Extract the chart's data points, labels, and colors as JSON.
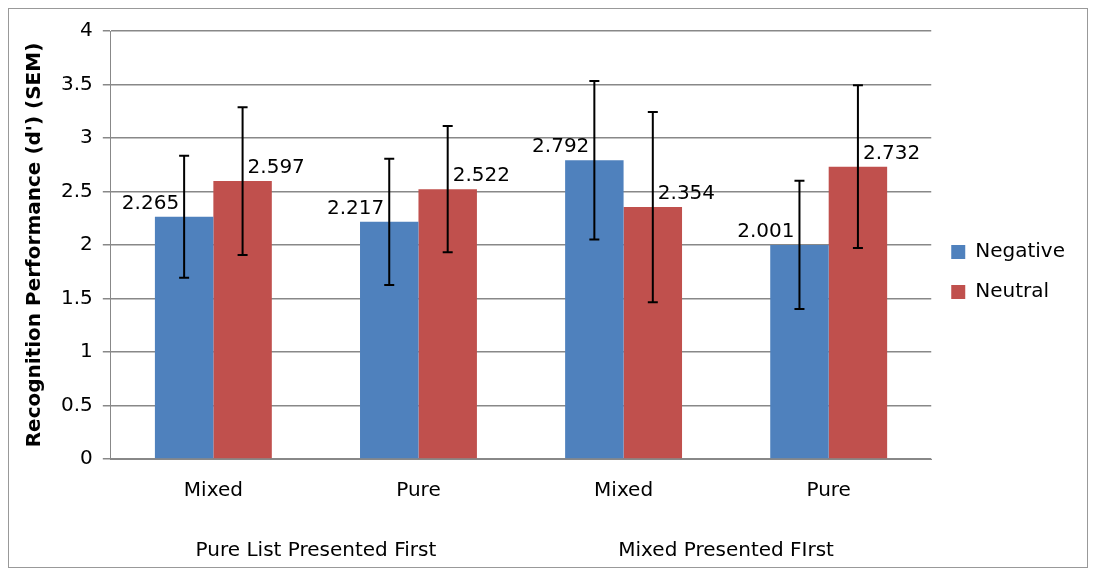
{
  "chart_data": {
    "type": "bar",
    "ylabel": "Recognition Performance (d') (SEM)",
    "categories": [
      "Mixed",
      "Pure",
      "Mixed",
      "Pure"
    ],
    "series": [
      {
        "name": "Negative",
        "color": "#4f81bd",
        "values": [
          2.265,
          2.217,
          2.792,
          2.001
        ],
        "value_labels": [
          "2.265",
          "2.217",
          "2.792",
          "2.001"
        ],
        "errors": [
          0.57,
          0.59,
          0.74,
          0.6
        ]
      },
      {
        "name": "Neutral",
        "color": "#c0504d",
        "values": [
          2.597,
          2.522,
          2.354,
          2.732
        ],
        "value_labels": [
          "2.597",
          "2.522",
          "2.354",
          "2.732"
        ],
        "errors": [
          0.69,
          0.59,
          0.89,
          0.76
        ]
      }
    ],
    "annotations": [
      "Pure List Presented First",
      "Mixed Presented FIrst"
    ],
    "ylim": [
      0,
      4
    ],
    "yticks": [
      0,
      0.5,
      1,
      1.5,
      2,
      2.5,
      3,
      3.5,
      4
    ],
    "grid": "y",
    "legend": "right"
  }
}
